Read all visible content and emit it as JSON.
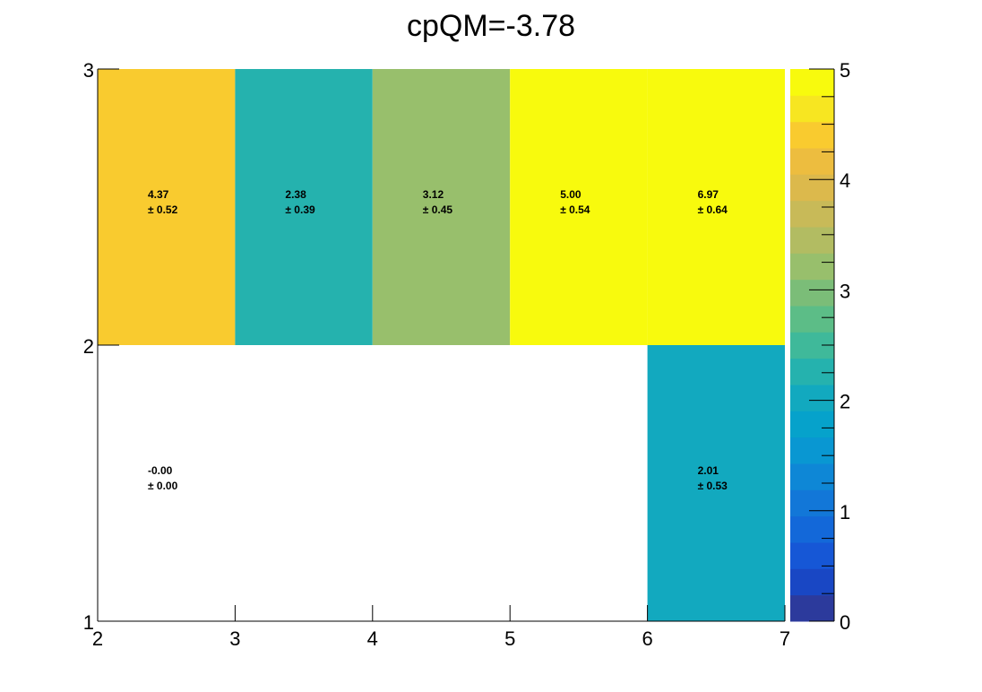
{
  "chart_data": {
    "type": "heatmap",
    "title": "cpQM=-3.78",
    "x_edges": [
      2,
      3,
      4,
      5,
      6,
      7
    ],
    "y_edges": [
      1,
      2,
      3
    ],
    "x_ticks": [
      "2",
      "3",
      "4",
      "5",
      "6",
      "7"
    ],
    "y_ticks": [
      "1",
      "2",
      "3"
    ],
    "z_range": [
      0,
      5
    ],
    "z_ticks": [
      "0",
      "1",
      "2",
      "3",
      "4",
      "5"
    ],
    "cells": [
      {
        "x": [
          2,
          3
        ],
        "y": [
          2,
          3
        ],
        "value": 4.37,
        "error": 0.52,
        "label": "4.37",
        "error_label": "± 0.52"
      },
      {
        "x": [
          3,
          4
        ],
        "y": [
          2,
          3
        ],
        "value": 2.38,
        "error": 0.39,
        "label": "2.38",
        "error_label": "± 0.39"
      },
      {
        "x": [
          4,
          5
        ],
        "y": [
          2,
          3
        ],
        "value": 3.12,
        "error": 0.45,
        "label": "3.12",
        "error_label": "± 0.45"
      },
      {
        "x": [
          5,
          6
        ],
        "y": [
          2,
          3
        ],
        "value": 5.0,
        "error": 0.54,
        "label": "5.00",
        "error_label": "± 0.54"
      },
      {
        "x": [
          6,
          7
        ],
        "y": [
          2,
          3
        ],
        "value": 6.97,
        "error": 0.64,
        "label": "6.97",
        "error_label": "± 0.64"
      },
      {
        "x": [
          2,
          3
        ],
        "y": [
          1,
          2
        ],
        "value": -0.0,
        "error": 0.0,
        "label": "-0.00",
        "error_label": "± 0.00"
      },
      {
        "x": [
          6,
          7
        ],
        "y": [
          1,
          2
        ],
        "value": 2.01,
        "error": 0.53,
        "label": "2.01",
        "error_label": "± 0.53"
      }
    ],
    "palette": [
      "#2c3a9c",
      "#1947c4",
      "#1657d6",
      "#1368d9",
      "#1277d8",
      "#0e87d6",
      "#0997d2",
      "#06a2cb",
      "#12a9bf",
      "#25b2ae",
      "#3fb99a",
      "#5cbd87",
      "#7bbd78",
      "#98bf6c",
      "#b2bc62",
      "#c8ba58",
      "#dcb94c",
      "#edbd3f",
      "#f9cb2f",
      "#f7e621",
      "#f8fa0d"
    ]
  }
}
